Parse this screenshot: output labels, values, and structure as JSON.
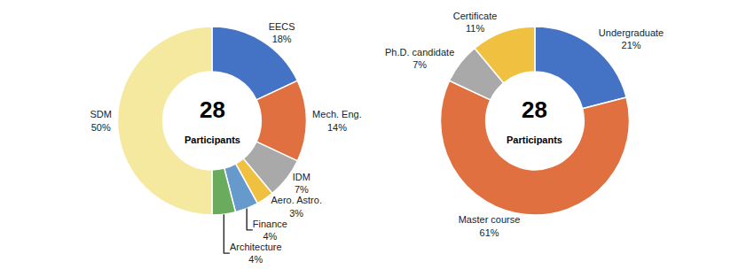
{
  "chart_data": [
    {
      "type": "pie",
      "categories": [
        "EECS",
        "Mech. Eng.",
        "IDM",
        "Aero. Astro.",
        "Finance",
        "Architecture",
        "SDM"
      ],
      "values": [
        18,
        14,
        7,
        3,
        4,
        4,
        50
      ],
      "value_labels": [
        "18%",
        "14%",
        "7%",
        "3%",
        "4%",
        "4%",
        "50%"
      ],
      "colors": [
        "#4472C4",
        "#E07040",
        "#A9A9A9",
        "#F0C040",
        "#6699CC",
        "#6AAB5E",
        "#F5E9A0"
      ],
      "data_labels": true,
      "annotations": [
        "28",
        "Participants"
      ]
    },
    {
      "type": "pie",
      "categories": [
        "Undergraduate",
        "Master course",
        "Ph.D. candidate",
        "Certificate"
      ],
      "values": [
        21,
        61,
        7,
        11
      ],
      "value_labels": [
        "21%",
        "61%",
        "7%",
        "11%"
      ],
      "colors": [
        "#4472C4",
        "#E07040",
        "#A9A9A9",
        "#F0C040"
      ],
      "data_labels": true,
      "annotations": [
        "28",
        "Participants"
      ]
    }
  ]
}
